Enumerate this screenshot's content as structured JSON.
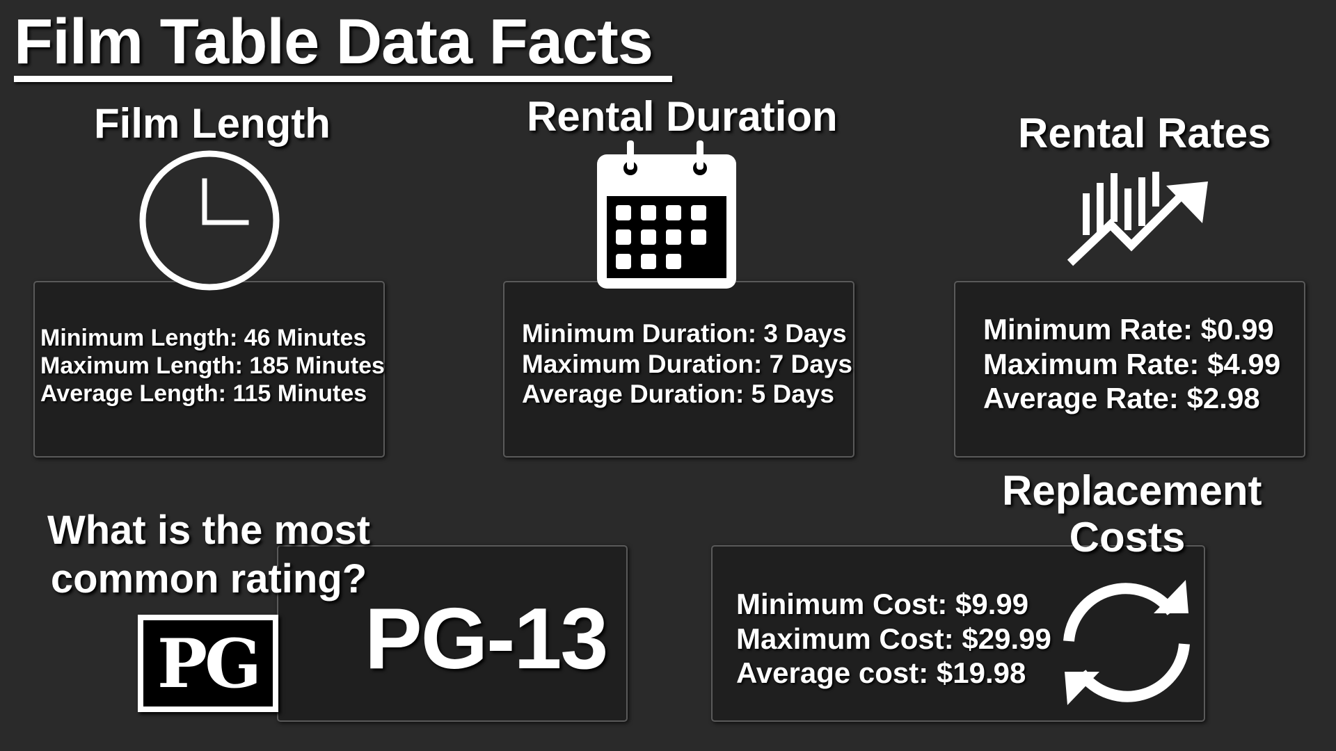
{
  "title": "Film Table Data Facts",
  "film_length": {
    "heading": "Film Length",
    "icon": "clock-icon",
    "lines": [
      "Minimum Length: 46 Minutes",
      "Maximum Length: 185 Minutes",
      "Average Length: 115 Minutes"
    ]
  },
  "rental_duration": {
    "heading": "Rental Duration",
    "icon": "calendar-icon",
    "lines": [
      "Minimum Duration: 3 Days",
      "Maximum Duration: 7 Days",
      "Average Duration: 5 Days"
    ]
  },
  "rental_rates": {
    "heading": "Rental Rates",
    "icon": "trending-up-chart-icon",
    "lines": [
      "Minimum Rate: $0.99",
      "Maximum Rate: $4.99",
      "Average Rate: $2.98"
    ]
  },
  "rating": {
    "question_line1": "What is the most",
    "question_line2": "common rating?",
    "badge_text": "PG",
    "answer": "PG-13"
  },
  "replacement_costs": {
    "heading_line1": "Replacement",
    "heading_line2": "Costs",
    "icon": "refresh-cycle-icon",
    "lines": [
      "Minimum Cost: $9.99",
      "Maximum Cost: $29.99",
      "Average cost: $19.98"
    ]
  }
}
